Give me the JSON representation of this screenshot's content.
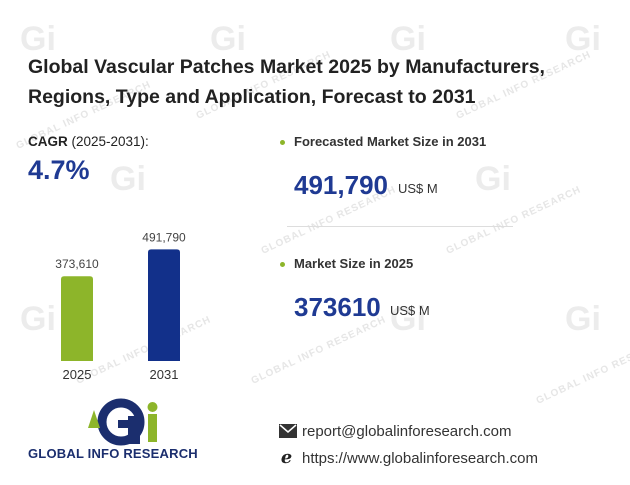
{
  "title_line1": "Global Vascular Patches Market 2025 by Manufacturers,",
  "title_line2": "Regions, Type and Application, Forecast to 2031",
  "cagr": {
    "label_bold": "CAGR",
    "label_period": " (2025-2031):",
    "value": "4.7%"
  },
  "chart_data": {
    "type": "bar",
    "categories": [
      "2025",
      "2031"
    ],
    "values": [
      373610,
      491790
    ],
    "value_labels": [
      "373,610",
      "491,790"
    ],
    "colors": [
      "#8db52a",
      "#12308a"
    ],
    "ylim": [
      0,
      520000
    ]
  },
  "kpis": [
    {
      "label": "Forecasted Market Size in 2031",
      "value": "491,790",
      "unit": "US$ M"
    },
    {
      "label": "Market Size in 2025",
      "value": "373610",
      "unit": "US$ M"
    }
  ],
  "brand": {
    "logo_text": "GLOBAL INFO RESEARCH",
    "email": "report@globalinforesearch.com",
    "website": "https://www.globalinforesearch.com",
    "watermark": "GLOBAL INFO RESEARCH",
    "accent_green": "#8db52a",
    "accent_blue": "#1f3a93"
  }
}
